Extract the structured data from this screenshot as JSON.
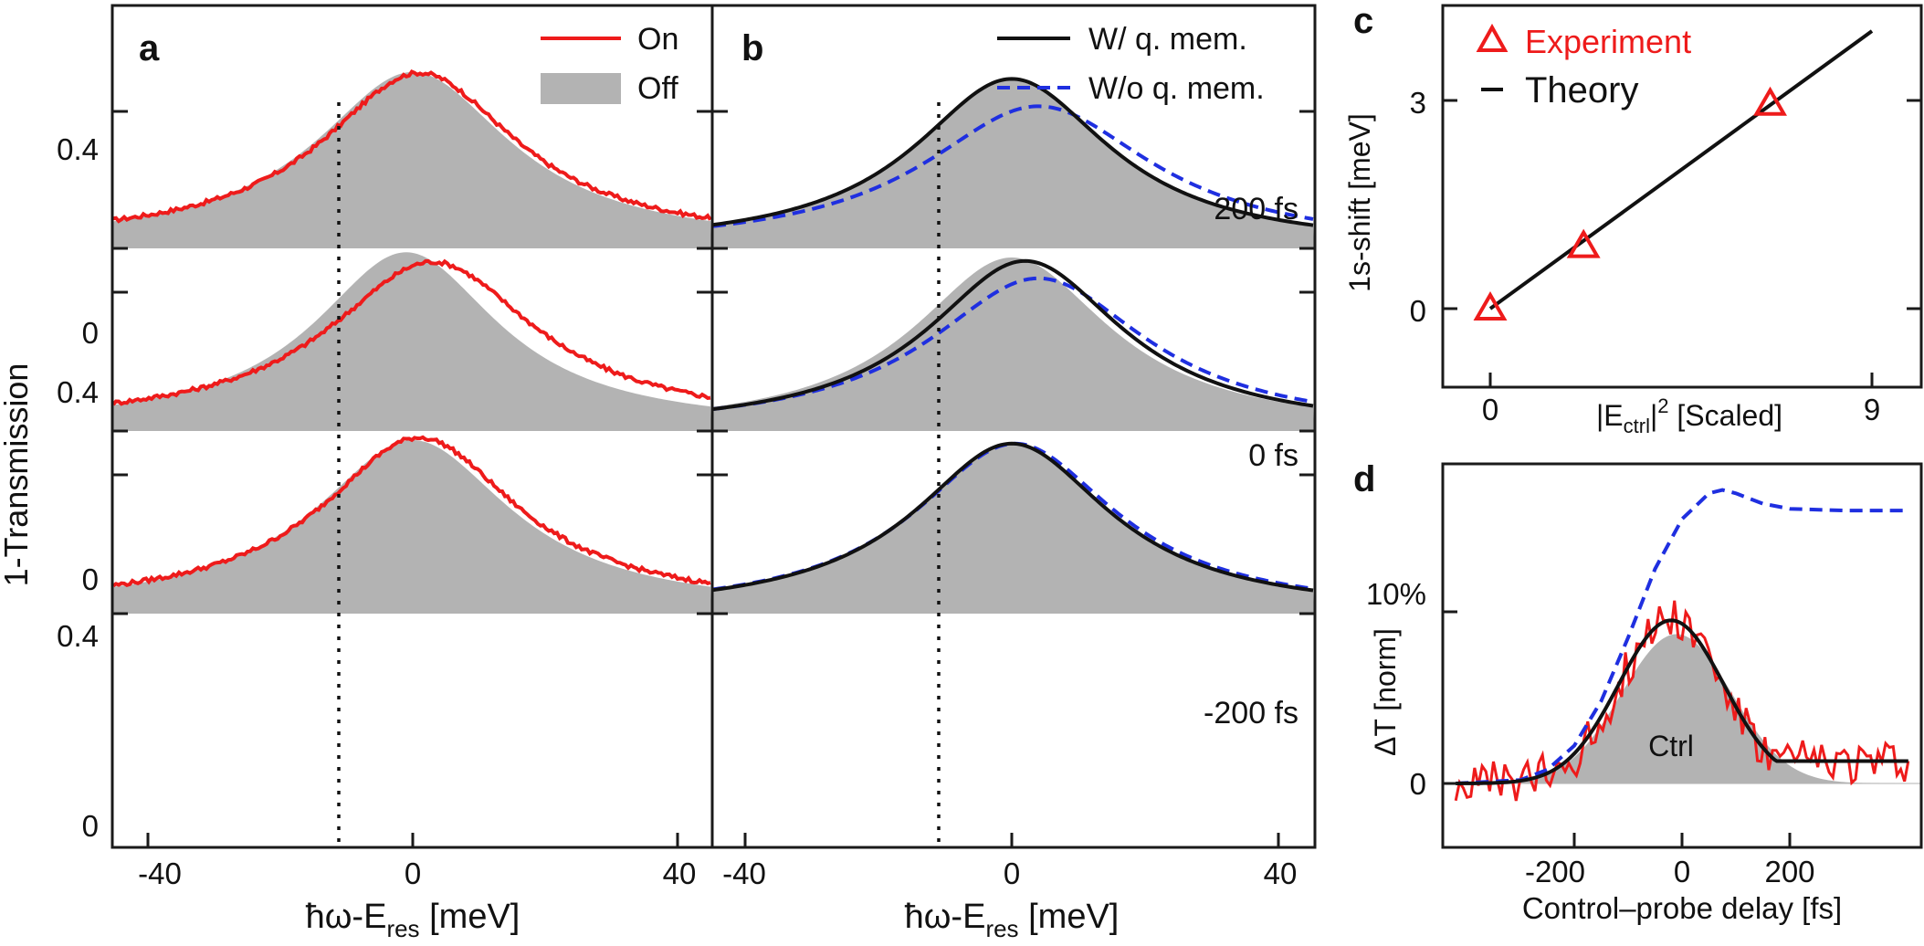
{
  "colors": {
    "red": "#ee1b1b",
    "blue": "#1f2fe0",
    "black": "#111111",
    "gray": "#b3b3b3",
    "axis": "#1a1a1a"
  },
  "text": {
    "ylabel_left": "1-Transmission",
    "xlabel_energy_main": "ħω-E",
    "xlabel_energy_sub": "res",
    "xlabel_energy_unit": " [meV]",
    "panel_a": "a",
    "panel_b": "b",
    "panel_c": "c",
    "panel_d": "d",
    "legend_on": "On",
    "legend_off": "Off",
    "legend_with": "W/ q. mem.",
    "legend_without": "W/o q. mem.",
    "delay_labels": [
      "200 fs",
      "0 fs",
      "-200 fs"
    ],
    "ytick_04": "0.4",
    "ytick_0": "0",
    "xticks_energy": [
      "-40",
      "0",
      "40"
    ],
    "c_ylabel": "1s-shift [meV]",
    "c_xlabel_pre": "|E",
    "c_xlabel_sub": "ctrl",
    "c_xlabel_sup": "2",
    "c_xlabel_post": " [Scaled]",
    "c_legend_exp": "Experiment",
    "c_legend_theory": "Theory",
    "c_yticks": [
      "0",
      "3"
    ],
    "c_xticks": [
      "0",
      "9"
    ],
    "d_ylabel": "ΔT [norm]",
    "d_xlabel": "Control–probe delay [fs]",
    "d_yticks": [
      "0",
      "10%"
    ],
    "d_xticks": [
      "-200",
      "0",
      "200"
    ],
    "d_ctrl": "Ctrl"
  },
  "chart_data": [
    {
      "panel": "a",
      "type": "area",
      "xlabel": "ħω-E_res [meV]",
      "ylabel": "1-Transmission",
      "xlim": [
        -46,
        46
      ],
      "ylim_each": [
        0,
        0.53
      ],
      "yticks": [
        0,
        0.4
      ],
      "xticks": [
        -40,
        0,
        40
      ],
      "vline_x": -11,
      "legend": [
        "On",
        "Off"
      ],
      "legend_position": "top-right",
      "subplots": [
        {
          "delay": "200 fs",
          "off": {
            "center": 0,
            "peak": 0.505,
            "hwhm": 18,
            "base": 0.05
          },
          "on": {
            "center": 1,
            "peak": 0.495,
            "hwhm": 18,
            "base": 0.07
          }
        },
        {
          "delay": "0 fs",
          "off": {
            "center": -1,
            "peak": 0.505,
            "hwhm": 17,
            "base": 0.05
          },
          "on": {
            "center": 3,
            "peak": 0.47,
            "hwhm": 19,
            "base": 0.07
          }
        },
        {
          "delay": "-200 fs",
          "off": {
            "center": 0,
            "peak": 0.49,
            "hwhm": 18,
            "base": 0.05
          },
          "on": {
            "center": 1,
            "peak": 0.49,
            "hwhm": 18,
            "base": 0.07
          }
        }
      ]
    },
    {
      "panel": "b",
      "type": "line",
      "xlabel": "ħω-E_res [meV]",
      "xlim": [
        -46,
        46
      ],
      "ylim_each": [
        0,
        0.53
      ],
      "xticks": [
        -40,
        0,
        40
      ],
      "vline_x": -11,
      "legend": [
        "W/ q. mem.",
        "W/o q. mem."
      ],
      "legend_position": "top-right",
      "subplots": [
        {
          "delay": "200 fs",
          "gray": {
            "center": 0,
            "peak": 0.49,
            "hwhm": 18
          },
          "with": {
            "center": 0,
            "peak": 0.495,
            "hwhm": 18
          },
          "without": {
            "center": 4,
            "peak": 0.415,
            "hwhm": 21
          }
        },
        {
          "delay": "0 fs",
          "gray": {
            "center": 0,
            "peak": 0.5,
            "hwhm": 18
          },
          "with": {
            "center": 2,
            "peak": 0.49,
            "hwhm": 18
          },
          "without": {
            "center": 4,
            "peak": 0.44,
            "hwhm": 20
          }
        },
        {
          "delay": "-200 fs",
          "gray": {
            "center": 0,
            "peak": 0.49,
            "hwhm": 18
          },
          "with": {
            "center": 0,
            "peak": 0.49,
            "hwhm": 18
          },
          "without": {
            "center": 0.5,
            "peak": 0.49,
            "hwhm": 18.5
          }
        }
      ]
    },
    {
      "panel": "c",
      "type": "scatter",
      "xlabel": "|E_ctrl|^2 [Scaled]",
      "ylabel": "1s-shift [meV]",
      "xlim": [
        -1,
        10
      ],
      "ylim": [
        -1.1,
        4.3
      ],
      "xticks": [
        0,
        9
      ],
      "yticks": [
        0,
        3
      ],
      "legend_position": "top-left",
      "series": [
        {
          "name": "Experiment",
          "marker": "triangle",
          "x": [
            0,
            2.2,
            6.6
          ],
          "y": [
            0,
            0.9,
            2.95
          ]
        },
        {
          "name": "Theory",
          "line": true,
          "x": [
            0,
            9
          ],
          "y": [
            0,
            4.0
          ]
        }
      ]
    },
    {
      "panel": "d",
      "type": "line",
      "xlabel": "Control–probe delay [fs]",
      "ylabel": "ΔT [norm]",
      "xlim": [
        -420,
        420
      ],
      "ylim": [
        -3,
        17.5
      ],
      "xticks": [
        -200,
        0,
        200
      ],
      "yticks": [
        0,
        10
      ],
      "series": [
        {
          "name": "Ctrl",
          "style": "gray-fill",
          "peak": 8.7,
          "center": -10,
          "fwhm": 240
        },
        {
          "style": "blue-dashed",
          "x": [
            -420,
            -300,
            -250,
            -200,
            -150,
            -100,
            -50,
            0,
            50,
            75,
            100,
            150,
            200,
            300,
            420
          ],
          "y": [
            0,
            0.2,
            0.8,
            2.2,
            4.8,
            8.5,
            12.5,
            15.4,
            16.9,
            17.1,
            16.9,
            16.3,
            16.0,
            15.9,
            15.9
          ]
        },
        {
          "style": "black-solid",
          "center": -20,
          "peak": 9.5,
          "fwhm": 230,
          "tail": 1.3
        },
        {
          "style": "red-noisy",
          "center": -20,
          "peak": 9.8,
          "fwhm": 220,
          "noise": 1.3
        }
      ]
    }
  ]
}
